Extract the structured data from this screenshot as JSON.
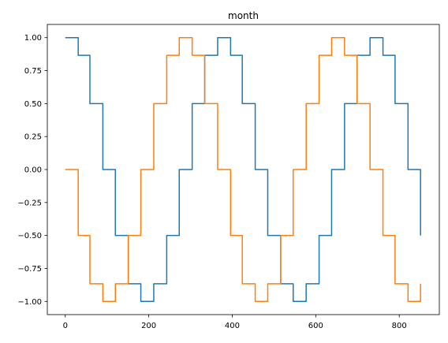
{
  "chart_data": {
    "type": "line",
    "title": "month",
    "xlabel": "",
    "ylabel": "",
    "xlim": [
      -43,
      896
    ],
    "ylim": [
      -1.1,
      1.1
    ],
    "grid": false,
    "legend": "none",
    "x_ticks": [
      0,
      200,
      400,
      600,
      800
    ],
    "x_tick_labels": [
      "0",
      "200",
      "400",
      "600",
      "800"
    ],
    "y_ticks": [
      -1.0,
      -0.75,
      -0.5,
      -0.25,
      0.0,
      0.25,
      0.5,
      0.75,
      1.0
    ],
    "y_tick_labels": [
      "−1.00",
      "−0.75",
      "−0.50",
      "−0.25",
      "0.00",
      "0.25",
      "0.50",
      "0.75",
      "1.00"
    ],
    "series": [
      {
        "color": "#1f77b4",
        "x": [
          0,
          31,
          31,
          59,
          59,
          90,
          90,
          120,
          120,
          151,
          151,
          181,
          181,
          212,
          212,
          243,
          243,
          273,
          273,
          304,
          304,
          334,
          334,
          365,
          365,
          396,
          396,
          424,
          424,
          455,
          455,
          485,
          485,
          516,
          516,
          546,
          546,
          577,
          577,
          608,
          608,
          638,
          638,
          669,
          669,
          699,
          699,
          730,
          730,
          761,
          761,
          790,
          790,
          821,
          821,
          851,
          851
        ],
        "y": [
          1.0,
          1.0,
          0.866,
          0.866,
          0.5,
          0.5,
          0.0,
          0.0,
          -0.5,
          -0.5,
          -0.866,
          -0.866,
          -1.0,
          -1.0,
          -0.866,
          -0.866,
          -0.5,
          -0.5,
          0.0,
          0.0,
          0.5,
          0.5,
          0.866,
          0.866,
          1.0,
          1.0,
          0.866,
          0.866,
          0.5,
          0.5,
          0.0,
          0.0,
          -0.5,
          -0.5,
          -0.866,
          -0.866,
          -1.0,
          -1.0,
          -0.866,
          -0.866,
          -0.5,
          -0.5,
          0.0,
          0.0,
          0.5,
          0.5,
          0.866,
          0.866,
          1.0,
          1.0,
          0.866,
          0.866,
          0.5,
          0.5,
          0.0,
          0.0,
          -0.5
        ]
      },
      {
        "color": "#ff7f0e",
        "x": [
          0,
          31,
          31,
          59,
          59,
          90,
          90,
          120,
          120,
          151,
          151,
          181,
          181,
          212,
          212,
          243,
          243,
          273,
          273,
          304,
          304,
          334,
          334,
          365,
          365,
          396,
          396,
          424,
          424,
          455,
          455,
          485,
          485,
          516,
          516,
          546,
          546,
          577,
          577,
          608,
          608,
          638,
          638,
          669,
          669,
          699,
          699,
          730,
          730,
          761,
          761,
          790,
          790,
          821,
          821,
          851,
          851
        ],
        "y": [
          0.0,
          0.0,
          -0.5,
          -0.5,
          -0.866,
          -0.866,
          -1.0,
          -1.0,
          -0.866,
          -0.866,
          -0.5,
          -0.5,
          0.0,
          0.0,
          0.5,
          0.5,
          0.866,
          0.866,
          1.0,
          1.0,
          0.866,
          0.866,
          0.5,
          0.5,
          0.0,
          0.0,
          -0.5,
          -0.5,
          -0.866,
          -0.866,
          -1.0,
          -1.0,
          -0.866,
          -0.866,
          -0.5,
          -0.5,
          0.0,
          0.0,
          0.5,
          0.5,
          0.866,
          0.866,
          1.0,
          1.0,
          0.866,
          0.866,
          0.5,
          0.5,
          0.0,
          0.0,
          -0.5,
          -0.5,
          -0.866,
          -0.866,
          -1.0,
          -1.0,
          -0.866
        ]
      }
    ]
  }
}
